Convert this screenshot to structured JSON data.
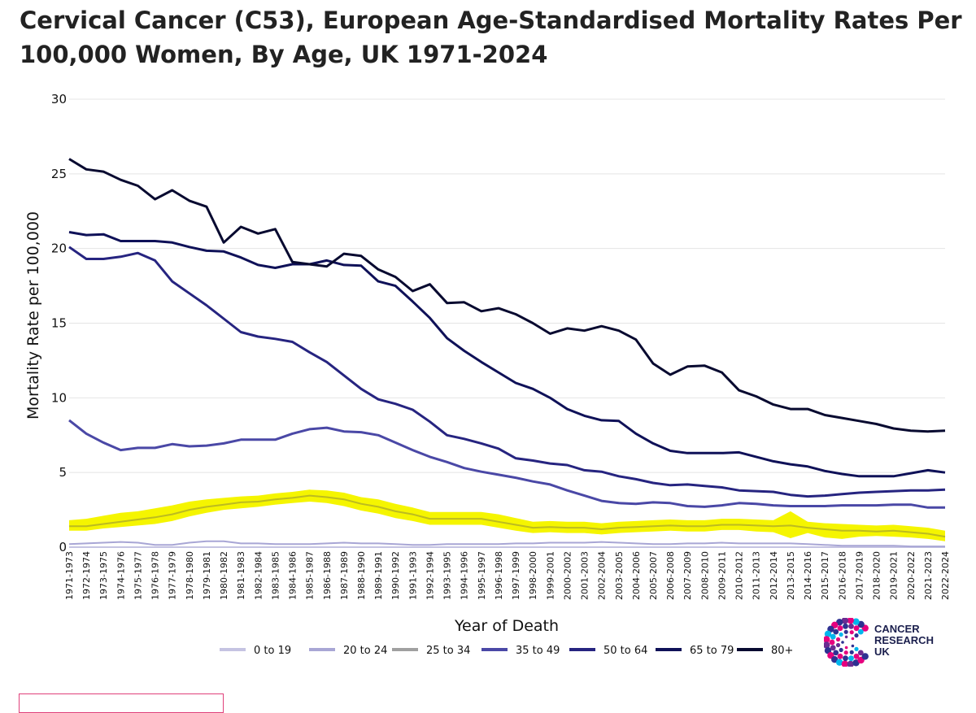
{
  "title": "Cervical Cancer (C53), European Age-Standardised Mortality Rates Per 100,000 Women, By Age, UK 1971-2024",
  "logo": {
    "icon": "cancer-research-uk-logo",
    "lines": [
      "CANCER",
      "RESEARCH",
      "UK"
    ]
  },
  "chart_data": {
    "type": "line",
    "xlabel": "Year of Death",
    "ylabel": "Mortality Rate per 100,000",
    "ylim": [
      0,
      30
    ],
    "yticks": [
      0,
      5,
      10,
      15,
      20,
      25,
      30
    ],
    "grid": "horizontal",
    "legend": "bottom",
    "categories": [
      "1971-1973",
      "1972-1974",
      "1973-1975",
      "1974-1976",
      "1975-1977",
      "1976-1978",
      "1977-1979",
      "1978-1980",
      "1979-1981",
      "1980-1982",
      "1981-1983",
      "1982-1984",
      "1983-1985",
      "1984-1986",
      "1985-1987",
      "1986-1988",
      "1987-1989",
      "1988-1990",
      "1989-1991",
      "1990-1992",
      "1991-1993",
      "1992-1994",
      "1993-1995",
      "1994-1996",
      "1995-1997",
      "1996-1998",
      "1997-1999",
      "1998-2000",
      "1999-2001",
      "2000-2002",
      "2001-2003",
      "2002-2004",
      "2003-2005",
      "2004-2006",
      "2005-2007",
      "2006-2008",
      "2007-2009",
      "2008-2010",
      "2009-2011",
      "2010-2012",
      "2011-2013",
      "2012-2014",
      "2013-2015",
      "2014-2016",
      "2015-2017",
      "2016-2018",
      "2017-2019",
      "2018-2020",
      "2019-2021",
      "2020-2022",
      "2021-2023",
      "2022-2024"
    ],
    "series": [
      {
        "name": "0 to 19",
        "color": "#c5c3e2",
        "values": [
          0.0,
          0.0,
          0.0,
          0.0,
          0.0,
          0.0,
          0.0,
          0.0,
          0.0,
          0.0,
          0.0,
          0.0,
          0.0,
          0.0,
          0.0,
          0.0,
          0.0,
          0.0,
          0.0,
          0.0,
          0.0,
          0.0,
          0.0,
          0.0,
          0.0,
          0.0,
          0.0,
          0.0,
          0.0,
          0.0,
          0.0,
          0.0,
          0.0,
          0.0,
          0.0,
          0.0,
          0.0,
          0.0,
          0.0,
          0.0,
          0.0,
          0.0,
          0.0,
          0.0,
          0.0,
          0.0,
          0.0,
          0.0,
          0.0,
          0.0,
          0.0,
          0.0
        ]
      },
      {
        "name": "20 to 24",
        "color": "#a8a6d5",
        "values": [
          0.2,
          0.25,
          0.3,
          0.35,
          0.3,
          0.15,
          0.15,
          0.3,
          0.4,
          0.4,
          0.25,
          0.25,
          0.2,
          0.2,
          0.2,
          0.25,
          0.3,
          0.25,
          0.25,
          0.2,
          0.15,
          0.15,
          0.2,
          0.2,
          0.2,
          0.2,
          0.25,
          0.25,
          0.3,
          0.3,
          0.3,
          0.35,
          0.3,
          0.25,
          0.2,
          0.2,
          0.25,
          0.25,
          0.3,
          0.25,
          0.25,
          0.25,
          0.25,
          0.2,
          0.15,
          0.1,
          0.1,
          0.1,
          0.1,
          0.05,
          0.05,
          0.05
        ]
      },
      {
        "name": "25 to 34",
        "color": "#a0a0a0",
        "hidden_line": true,
        "values": [
          1.4,
          1.4,
          1.55,
          1.7,
          1.85,
          2.0,
          2.2,
          2.5,
          2.7,
          2.85,
          3.0,
          3.05,
          3.2,
          3.3,
          3.45,
          3.35,
          3.2,
          2.9,
          2.7,
          2.4,
          2.2,
          1.9,
          1.9,
          1.9,
          1.9,
          1.7,
          1.5,
          1.3,
          1.35,
          1.3,
          1.3,
          1.2,
          1.3,
          1.35,
          1.4,
          1.45,
          1.4,
          1.4,
          1.5,
          1.5,
          1.45,
          1.4,
          1.45,
          1.3,
          1.2,
          1.1,
          1.1,
          1.05,
          1.1,
          1.0,
          0.9,
          0.7
        ]
      },
      {
        "name": "35 to 49",
        "color": "#4a48a6",
        "values": [
          8.5,
          7.6,
          7.0,
          6.5,
          6.65,
          6.65,
          6.9,
          6.75,
          6.8,
          6.95,
          7.2,
          7.2,
          7.2,
          7.6,
          7.9,
          8.0,
          7.75,
          7.7,
          7.5,
          7.0,
          6.5,
          6.05,
          5.7,
          5.3,
          5.05,
          4.85,
          4.65,
          4.4,
          4.2,
          3.8,
          3.45,
          3.1,
          2.95,
          2.9,
          3.0,
          2.95,
          2.75,
          2.7,
          2.8,
          2.95,
          2.9,
          2.8,
          2.75,
          2.75,
          2.75,
          2.8,
          2.8,
          2.8,
          2.85,
          2.85,
          2.65,
          2.65
        ]
      },
      {
        "name": "50 to 64",
        "color": "#262480",
        "values": [
          20.1,
          19.3,
          19.3,
          19.45,
          19.7,
          19.2,
          17.8,
          17.0,
          16.2,
          15.3,
          14.4,
          14.1,
          13.95,
          13.75,
          13.05,
          12.4,
          11.5,
          10.6,
          9.9,
          9.6,
          9.2,
          8.4,
          7.5,
          7.25,
          6.95,
          6.6,
          5.95,
          5.8,
          5.6,
          5.5,
          5.15,
          5.05,
          4.75,
          4.55,
          4.3,
          4.15,
          4.2,
          4.1,
          4.0,
          3.8,
          3.75,
          3.7,
          3.5,
          3.4,
          3.45,
          3.55,
          3.65,
          3.7,
          3.75,
          3.8,
          3.8,
          3.85
        ]
      },
      {
        "name": "65 to 79",
        "color": "#0f1158",
        "values": [
          21.1,
          20.9,
          20.95,
          20.5,
          20.5,
          20.5,
          20.4,
          20.1,
          19.85,
          19.8,
          19.4,
          18.9,
          18.7,
          18.95,
          18.95,
          19.2,
          18.9,
          18.85,
          17.8,
          17.5,
          16.45,
          15.35,
          14.0,
          13.15,
          12.4,
          11.7,
          11.0,
          10.6,
          10.0,
          9.25,
          8.8,
          8.5,
          8.45,
          7.6,
          6.95,
          6.45,
          6.3,
          6.3,
          6.3,
          6.35,
          6.05,
          5.75,
          5.55,
          5.4,
          5.1,
          4.9,
          4.75,
          4.75,
          4.75,
          4.95,
          5.15,
          5.0
        ]
      },
      {
        "name": "80+",
        "color": "#080a30",
        "values": [
          26.0,
          25.3,
          25.15,
          24.6,
          24.2,
          23.3,
          23.9,
          23.2,
          22.8,
          20.4,
          21.45,
          21.0,
          21.3,
          19.1,
          18.95,
          18.8,
          19.65,
          19.5,
          18.6,
          18.1,
          17.15,
          17.6,
          16.35,
          16.4,
          15.8,
          16.0,
          15.6,
          15.0,
          14.3,
          14.65,
          14.5,
          14.8,
          14.5,
          13.9,
          12.3,
          11.55,
          12.1,
          12.15,
          11.7,
          10.5,
          10.1,
          9.55,
          9.25,
          9.25,
          8.85,
          8.65,
          8.45,
          8.25,
          7.95,
          7.8,
          7.75,
          7.8
        ]
      }
    ],
    "confidence_band": {
      "series": "25 to 34",
      "color": "#f5f500",
      "lower": [
        1.1,
        1.1,
        1.25,
        1.35,
        1.45,
        1.55,
        1.75,
        2.05,
        2.3,
        2.5,
        2.6,
        2.7,
        2.85,
        2.95,
        3.05,
        2.95,
        2.75,
        2.45,
        2.25,
        1.95,
        1.75,
        1.5,
        1.5,
        1.5,
        1.5,
        1.3,
        1.1,
        0.95,
        1.0,
        0.95,
        0.95,
        0.85,
        0.95,
        1.0,
        1.05,
        1.1,
        1.05,
        1.05,
        1.15,
        1.15,
        1.05,
        1.0,
        0.6,
        0.95,
        0.65,
        0.55,
        0.7,
        0.75,
        0.7,
        0.65,
        0.55,
        0.4
      ],
      "upper": [
        1.8,
        1.9,
        2.1,
        2.3,
        2.4,
        2.6,
        2.8,
        3.05,
        3.2,
        3.3,
        3.4,
        3.45,
        3.6,
        3.7,
        3.85,
        3.8,
        3.65,
        3.35,
        3.2,
        2.9,
        2.65,
        2.35,
        2.35,
        2.35,
        2.35,
        2.2,
        1.95,
        1.7,
        1.75,
        1.7,
        1.7,
        1.6,
        1.7,
        1.75,
        1.8,
        1.85,
        1.8,
        1.8,
        1.9,
        1.9,
        1.85,
        1.8,
        2.4,
        1.7,
        1.6,
        1.55,
        1.5,
        1.45,
        1.5,
        1.4,
        1.3,
        1.1
      ]
    }
  }
}
